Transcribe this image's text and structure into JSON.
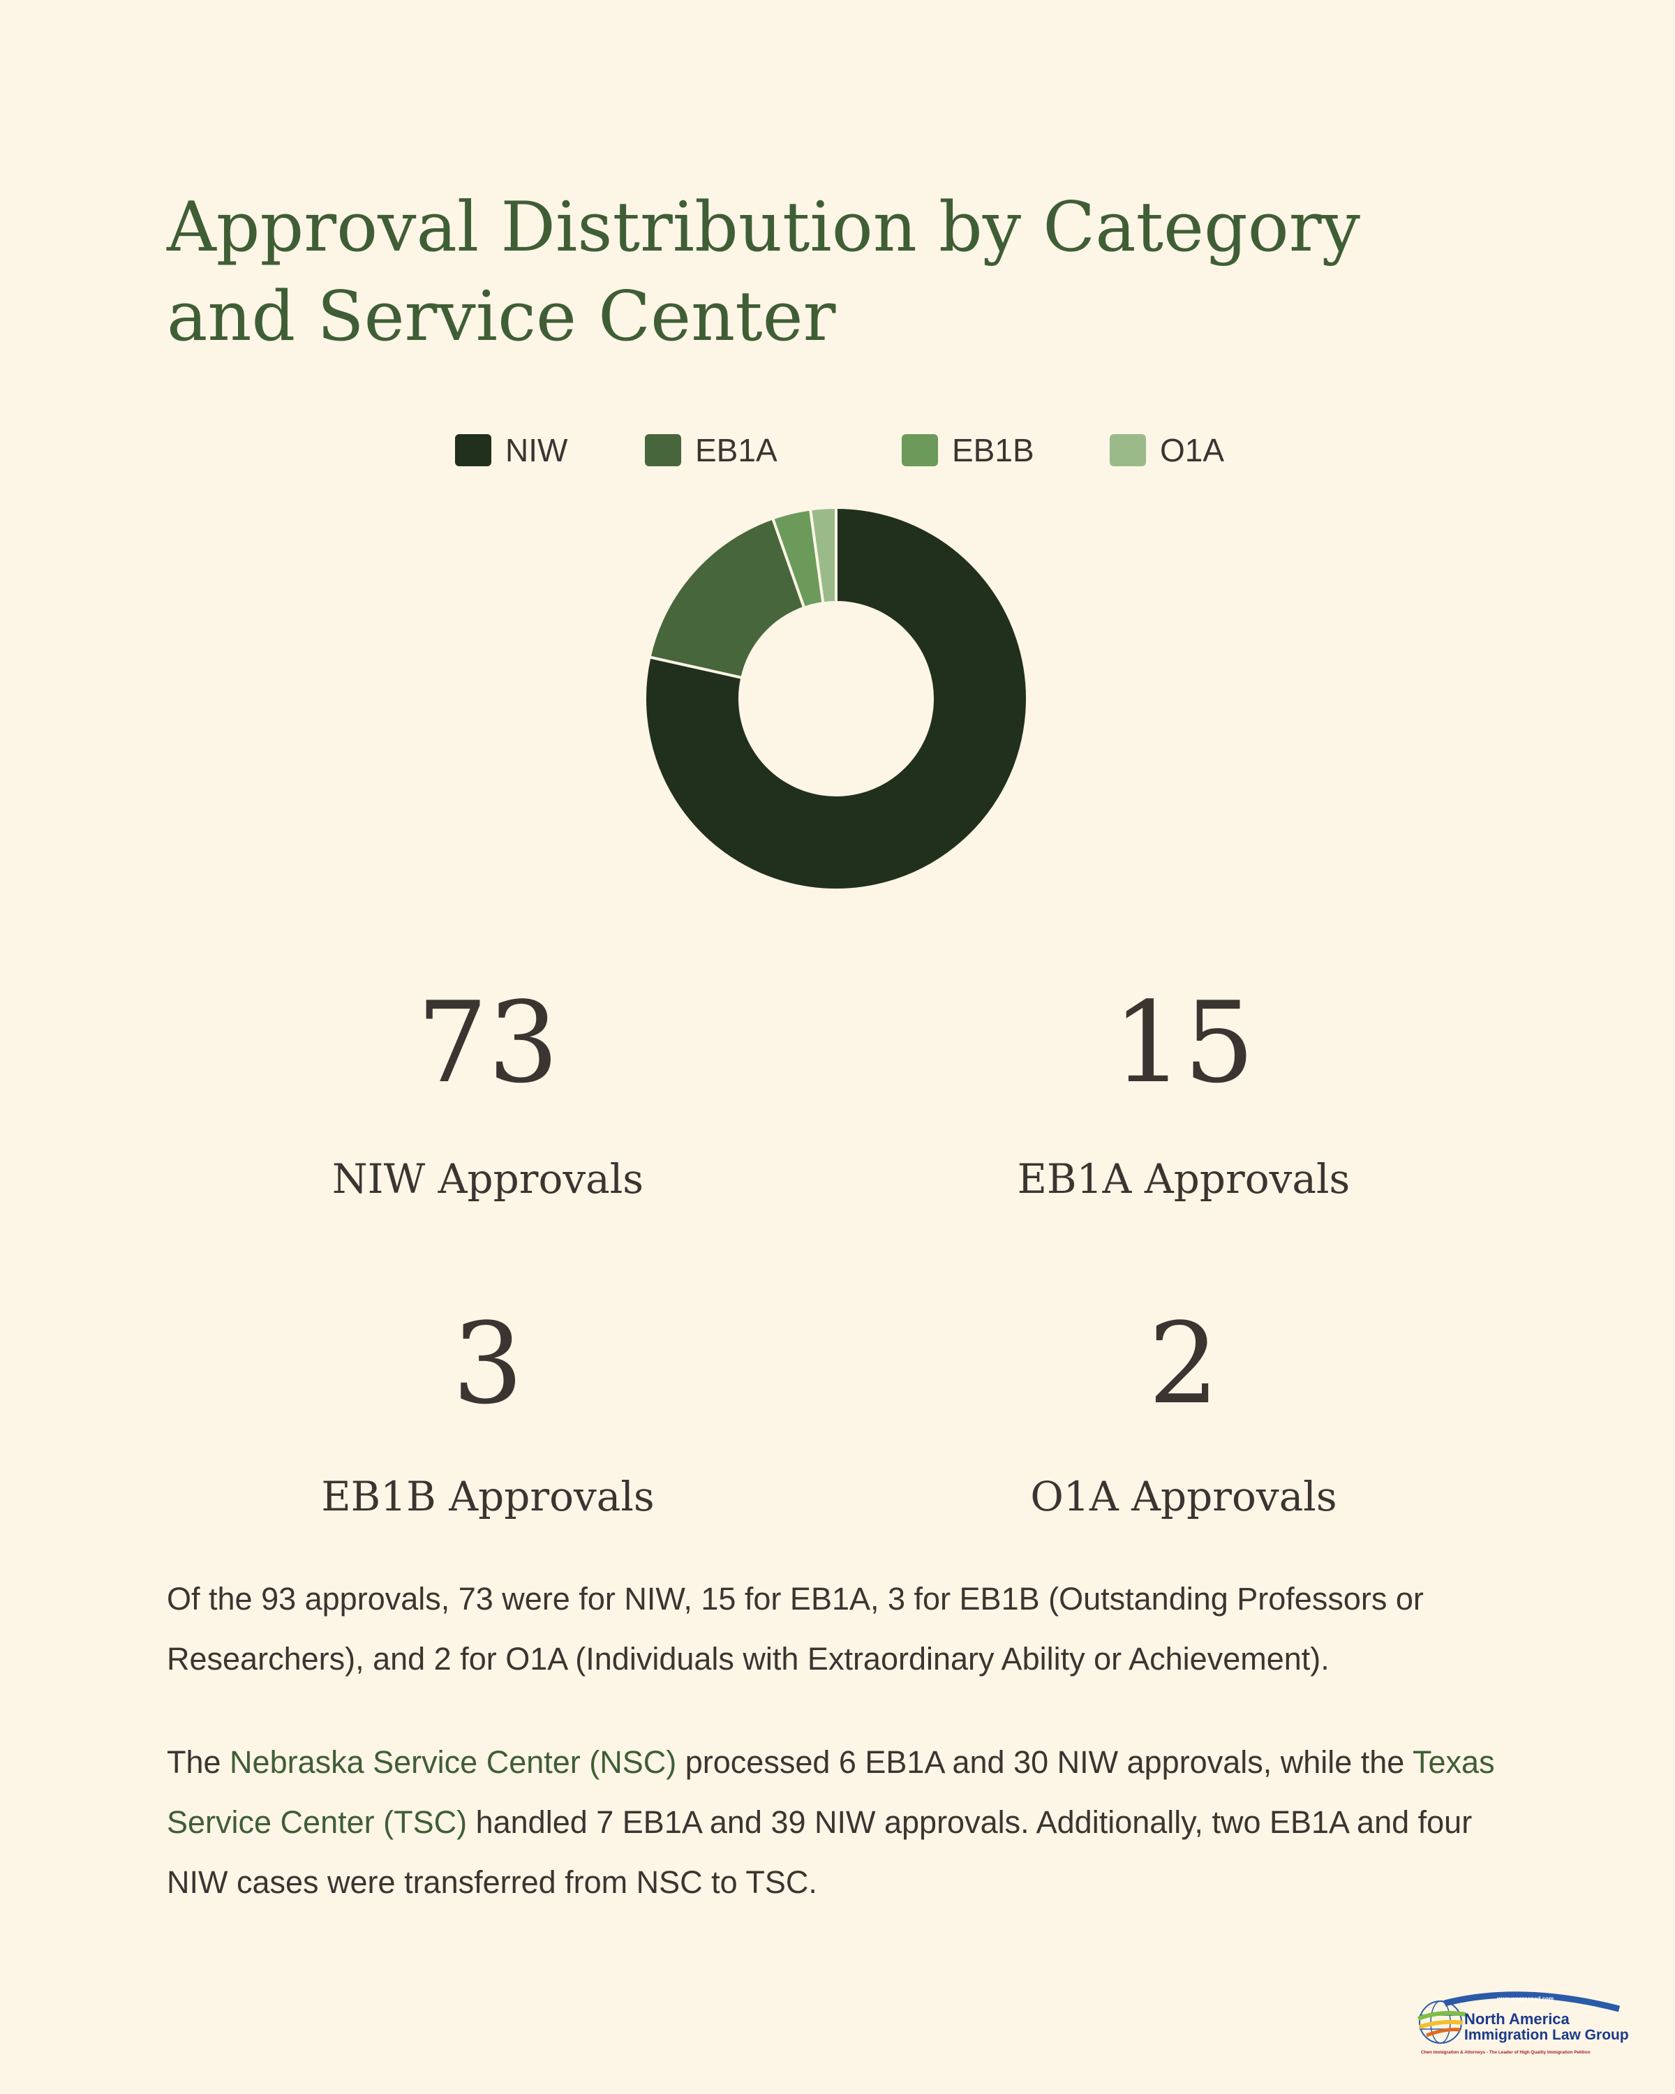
{
  "title": "Approval Distribution by Category and Service Center",
  "chart_data": {
    "type": "pie",
    "variant": "donut",
    "categories": [
      "NIW",
      "EB1A",
      "EB1B",
      "O1A"
    ],
    "values": [
      73,
      15,
      3,
      2
    ],
    "colors": [
      "#21301d",
      "#48663b",
      "#6b9a5a",
      "#9aba8a"
    ],
    "legend_position": "top"
  },
  "stats": [
    {
      "value": "73",
      "label": "NIW Approvals"
    },
    {
      "value": "15",
      "label": "EB1A Approvals"
    },
    {
      "value": "3",
      "label": "EB1B Approvals"
    },
    {
      "value": "2",
      "label": "O1A Approvals"
    }
  ],
  "paragraph1": "Of the 93 approvals, 73 were for NIW, 15 for EB1A, 3 for EB1B (Outstanding Professors or Researchers), and 2 for O1A (Individuals with Extraordinary Ability or Achievement).",
  "paragraph2": {
    "p1": "The ",
    "nsc": "Nebraska Service Center (NSC)",
    "p2": " processed 6 EB1A and 30 NIW approvals, while the ",
    "tsc": "Texas Service Center (TSC)",
    "p3": " handled 7 EB1A and 39 NIW approvals. Additionally, two EB1A and four NIW cases were transferred from NSC to TSC."
  },
  "logo": {
    "url": "www.wegreened.com",
    "line1": "North America",
    "line2": "Immigration Law Group",
    "tagline": "Chen Immigration & Attorneys - The Leader of High Quality Immigration Petition"
  }
}
